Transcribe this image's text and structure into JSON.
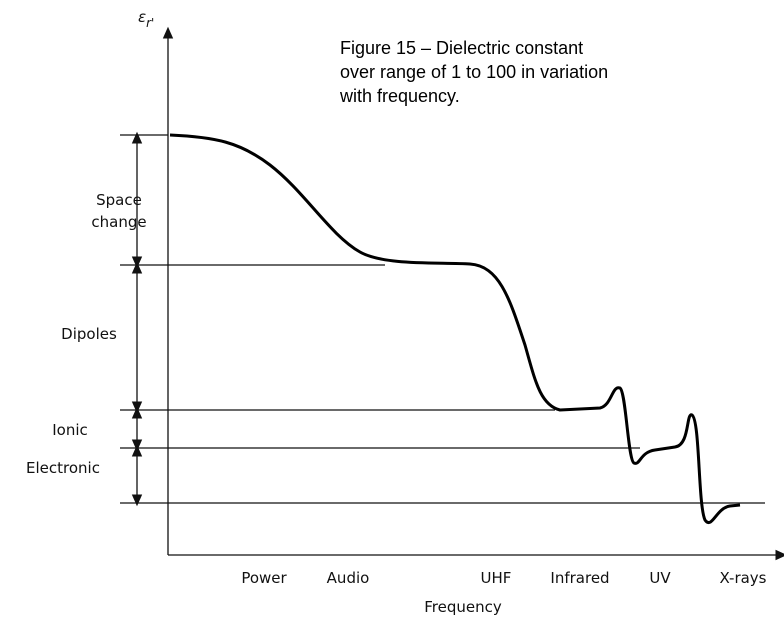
{
  "axis_label": {
    "symbol": "ε",
    "subscript": "r'"
  },
  "caption": {
    "lines": [
      "Figure 15 –  Dielectric constant",
      "over range of 1 to 100 in variation",
      "with frequency."
    ]
  },
  "regions": [
    {
      "lines": [
        "Space",
        "change"
      ]
    },
    {
      "lines": [
        "Dipoles"
      ]
    },
    {
      "lines": [
        "Ionic"
      ]
    },
    {
      "lines": [
        "Electronic"
      ]
    }
  ],
  "bands": [
    "Power",
    "Audio",
    "UHF",
    "Infrared",
    "UV",
    "X-rays"
  ],
  "x_axis_label": "Frequency"
}
